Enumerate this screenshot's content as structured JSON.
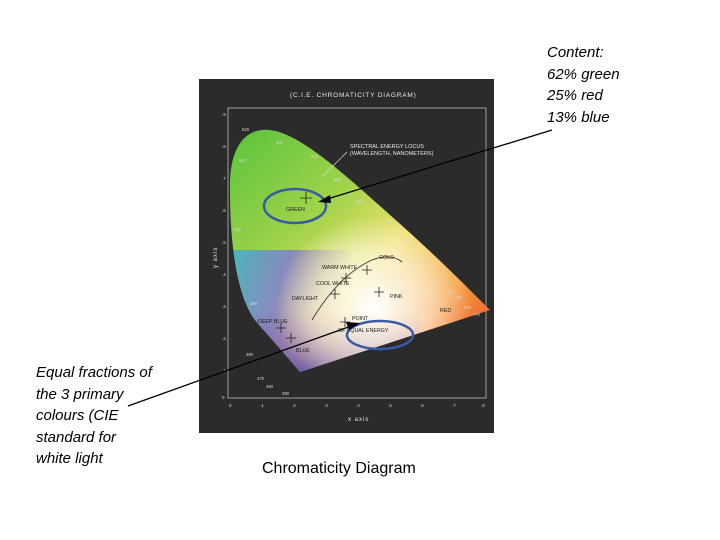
{
  "annotations": {
    "top_right": {
      "lines": [
        "Content:",
        "62% green",
        "25% red",
        "13% blue"
      ]
    },
    "bottom_left": {
      "lines": [
        "Equal fractions of",
        "the 3 primary",
        "colours (CIE",
        "standard for",
        "white light"
      ]
    }
  },
  "caption": "Chromaticity Diagram",
  "diagram": {
    "title": "(C.I.E. CHROMATICITY DIAGRAM)",
    "x_axis_label": "x axis",
    "y_axis_label": "y axis",
    "x_ticks": [
      "0",
      ".1",
      ".2",
      ".3",
      ".4",
      ".5",
      ".6",
      ".7",
      ".8"
    ],
    "y_ticks": [
      ".9",
      ".8",
      ".7",
      ".6",
      ".5",
      ".4",
      ".3",
      ".2",
      ".1",
      "0"
    ],
    "spectral_locus_label": [
      "SPECTRAL ENERGY LOCUS",
      "(WAVELENGTH, NANOMETERS)"
    ],
    "wavelength_labels": [
      "520",
      "530",
      "510",
      "540",
      "550",
      "560",
      "500",
      "570",
      "580",
      "590",
      "600",
      "610",
      "620",
      "640",
      "770",
      "490",
      "480",
      "470",
      "460",
      "380"
    ],
    "region_labels": {
      "green": "GREEN",
      "gold": "GOLD",
      "warm_white": "WARM WHITE",
      "cool_white": "COOL WHITE",
      "daylight": "DAYLIGHT",
      "pink": "PINK",
      "red": "RED",
      "point_of_equal_energy": [
        "POINT",
        "OF EQUAL ENERGY"
      ],
      "deep_blue": "DEEP BLUE",
      "blue": "BLUE"
    },
    "colors": {
      "panel": "#2b2b2b",
      "highlight_ellipse": "#3a5aa8",
      "green": "#5fc13a",
      "red": "#e8262a",
      "blue": "#6a55b8"
    }
  }
}
